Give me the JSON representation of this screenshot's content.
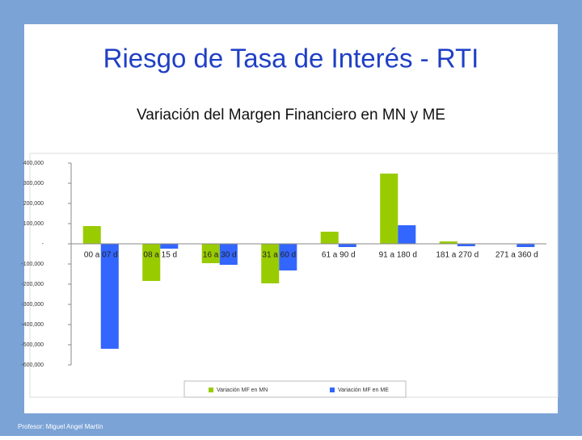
{
  "title": "Riesgo de Tasa de Interés - RTI",
  "footer": "Profesor: Miguel Angel Martín",
  "chart_data": {
    "type": "bar",
    "title": "Variación del Margen Financiero en MN y ME",
    "categories": [
      "00 a 07 d",
      "08 a 15 d",
      "16 a 30 d",
      "31 a 60 d",
      "61 a 90 d",
      "91 a 180 d",
      "181 a 270 d",
      "271 a 360 d"
    ],
    "series": [
      {
        "name": "Variación MF en MN",
        "color": "#99cc00",
        "values": [
          88000,
          -184000,
          -96000,
          -196000,
          60000,
          348000,
          12000,
          2000
        ]
      },
      {
        "name": "Variación MF en ME",
        "color": "#3366ff",
        "values": [
          -520000,
          -24000,
          -104000,
          -132000,
          -16000,
          92000,
          -12000,
          -16000
        ]
      }
    ],
    "ylim": [
      -600000,
      400000
    ],
    "yticks": [
      {
        "value": 400000,
        "label": "400,000"
      },
      {
        "value": 300000,
        "label": "300,000"
      },
      {
        "value": 200000,
        "label": "200,000"
      },
      {
        "value": 100000,
        "label": "100,000"
      },
      {
        "value": 0,
        "label": "-"
      },
      {
        "value": -100000,
        "label": "-100,000"
      },
      {
        "value": -200000,
        "label": "-200,000"
      },
      {
        "value": -300000,
        "label": "-300,000"
      },
      {
        "value": -400000,
        "label": "-400,000"
      },
      {
        "value": -500000,
        "label": "-500,000"
      },
      {
        "value": -600000,
        "label": "-600,000"
      }
    ],
    "grid": false,
    "legend": "bottom"
  }
}
